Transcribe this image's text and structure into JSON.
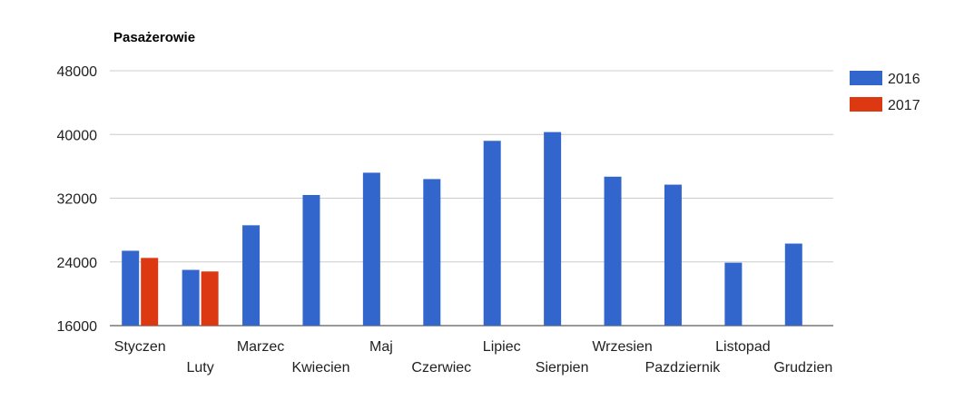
{
  "chart_data": {
    "type": "bar",
    "title": "Pasażerowie",
    "xlabel": "",
    "ylabel": "",
    "ylim": [
      16000,
      48000
    ],
    "yticks": [
      16000,
      24000,
      32000,
      40000,
      48000
    ],
    "grid": true,
    "legend_position": "top-right",
    "categories": [
      "Styczen",
      "Luty",
      "Marzec",
      "Kwiecien",
      "Maj",
      "Czerwiec",
      "Lipiec",
      "Sierpien",
      "Wrzesien",
      "Pazdziernik",
      "Listopad",
      "Grudzien"
    ],
    "series": [
      {
        "name": "2016",
        "color": "#3366cc",
        "values": [
          25400,
          23000,
          28600,
          32400,
          35200,
          34400,
          39200,
          40300,
          34700,
          33700,
          23900,
          26300
        ]
      },
      {
        "name": "2017",
        "color": "#dc3912",
        "values": [
          24500,
          22800,
          null,
          null,
          null,
          null,
          null,
          null,
          null,
          null,
          null,
          null
        ]
      }
    ]
  }
}
